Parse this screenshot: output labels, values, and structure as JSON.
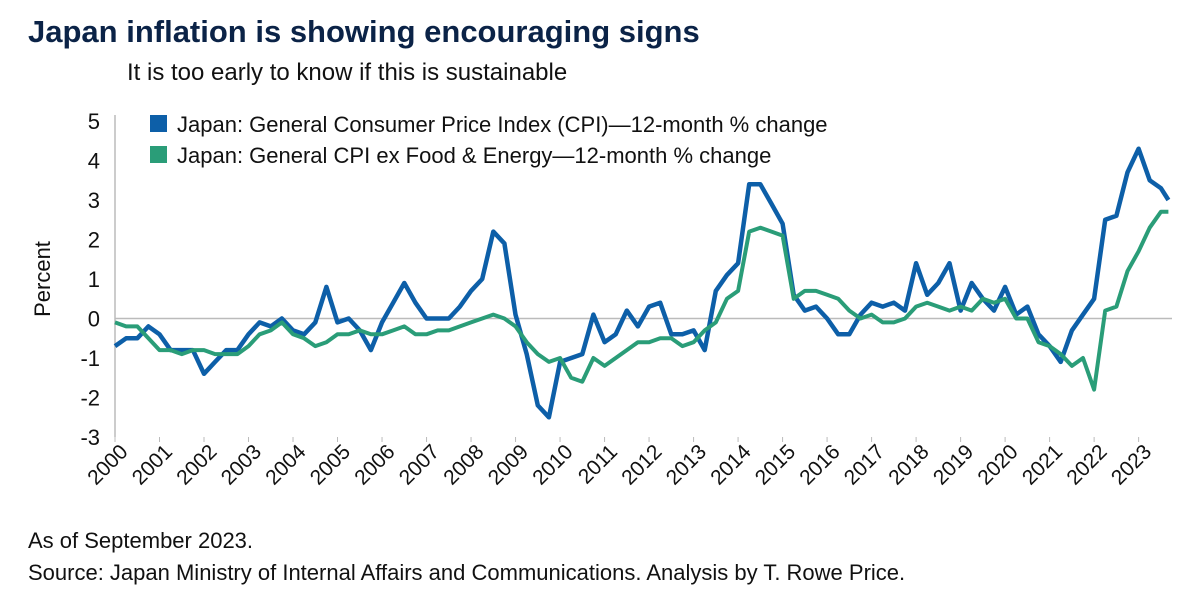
{
  "chart_data": {
    "type": "line",
    "title": "Japan inflation is showing encouraging signs",
    "subtitle": "It is too early to know if this is sustainable",
    "y_label": "Percent",
    "notes": [
      "As of September 2023.",
      "Source: Japan Ministry of Internal Affairs and Communications. Analysis by T. Rowe Price."
    ],
    "x": [
      2000,
      2000.25,
      2000.5,
      2000.75,
      2001,
      2001.25,
      2001.5,
      2001.75,
      2002,
      2002.25,
      2002.5,
      2002.75,
      2003,
      2003.25,
      2003.5,
      2003.75,
      2004,
      2004.25,
      2004.5,
      2004.75,
      2005,
      2005.25,
      2005.5,
      2005.75,
      2006,
      2006.25,
      2006.5,
      2006.75,
      2007,
      2007.25,
      2007.5,
      2007.75,
      2008,
      2008.25,
      2008.5,
      2008.75,
      2009,
      2009.25,
      2009.5,
      2009.75,
      2010,
      2010.25,
      2010.5,
      2010.75,
      2011,
      2011.25,
      2011.5,
      2011.75,
      2012,
      2012.25,
      2012.5,
      2012.75,
      2013,
      2013.25,
      2013.5,
      2013.75,
      2014,
      2014.25,
      2014.5,
      2014.75,
      2015,
      2015.25,
      2015.5,
      2015.75,
      2016,
      2016.25,
      2016.5,
      2016.75,
      2017,
      2017.25,
      2017.5,
      2017.75,
      2018,
      2018.25,
      2018.5,
      2018.75,
      2019,
      2019.25,
      2019.5,
      2019.75,
      2020,
      2020.25,
      2020.5,
      2020.75,
      2021,
      2021.25,
      2021.5,
      2021.75,
      2022,
      2022.25,
      2022.5,
      2022.75,
      2023,
      2023.25,
      2023.5,
      2023.67
    ],
    "series": [
      {
        "name": "Japan: General Consumer Price Index (CPI)—12-month % change",
        "color": "#0d5fa8",
        "values": [
          -0.7,
          -0.5,
          -0.5,
          -0.2,
          -0.4,
          -0.8,
          -0.8,
          -0.8,
          -1.4,
          -1.1,
          -0.8,
          -0.8,
          -0.4,
          -0.1,
          -0.2,
          0.0,
          -0.3,
          -0.4,
          -0.1,
          0.8,
          -0.1,
          0.0,
          -0.3,
          -0.8,
          -0.1,
          0.4,
          0.9,
          0.4,
          0.0,
          0.0,
          0.0,
          0.3,
          0.7,
          1.0,
          2.2,
          1.9,
          0.1,
          -0.9,
          -2.2,
          -2.5,
          -1.1,
          -1.0,
          -0.9,
          0.1,
          -0.6,
          -0.4,
          0.2,
          -0.2,
          0.3,
          0.4,
          -0.4,
          -0.4,
          -0.3,
          -0.8,
          0.7,
          1.1,
          1.4,
          3.4,
          3.4,
          2.9,
          2.4,
          0.6,
          0.2,
          0.3,
          0.0,
          -0.4,
          -0.4,
          0.1,
          0.4,
          0.3,
          0.4,
          0.2,
          1.4,
          0.6,
          0.9,
          1.4,
          0.2,
          0.9,
          0.5,
          0.2,
          0.8,
          0.1,
          0.3,
          -0.4,
          -0.7,
          -1.1,
          -0.3,
          0.1,
          0.5,
          2.5,
          2.6,
          3.7,
          4.3,
          3.5,
          3.3,
          3.0
        ]
      },
      {
        "name": "Japan: General CPI ex Food & Energy—12-month % change",
        "color": "#2a9d78",
        "values": [
          -0.1,
          -0.2,
          -0.2,
          -0.5,
          -0.8,
          -0.8,
          -0.9,
          -0.8,
          -0.8,
          -0.9,
          -0.9,
          -0.9,
          -0.7,
          -0.4,
          -0.3,
          -0.1,
          -0.4,
          -0.5,
          -0.7,
          -0.6,
          -0.4,
          -0.4,
          -0.3,
          -0.4,
          -0.4,
          -0.3,
          -0.2,
          -0.4,
          -0.4,
          -0.3,
          -0.3,
          -0.2,
          -0.1,
          0.0,
          0.1,
          0.0,
          -0.2,
          -0.6,
          -0.9,
          -1.1,
          -1.0,
          -1.5,
          -1.6,
          -1.0,
          -1.2,
          -1.0,
          -0.8,
          -0.6,
          -0.6,
          -0.5,
          -0.5,
          -0.7,
          -0.6,
          -0.3,
          -0.1,
          0.5,
          0.7,
          2.2,
          2.3,
          2.2,
          2.1,
          0.5,
          0.7,
          0.7,
          0.6,
          0.5,
          0.2,
          0.0,
          0.1,
          -0.1,
          -0.1,
          0.0,
          0.3,
          0.4,
          0.3,
          0.2,
          0.3,
          0.2,
          0.5,
          0.4,
          0.5,
          0.0,
          0.0,
          -0.6,
          -0.7,
          -0.9,
          -1.2,
          -1.0,
          -1.8,
          0.2,
          0.3,
          1.2,
          1.7,
          2.3,
          2.7,
          2.7
        ]
      }
    ],
    "xlim": [
      2000,
      2023.75
    ],
    "xticks": [
      2000,
      2001,
      2002,
      2003,
      2004,
      2005,
      2006,
      2007,
      2008,
      2009,
      2010,
      2011,
      2012,
      2013,
      2014,
      2015,
      2016,
      2017,
      2018,
      2019,
      2020,
      2021,
      2022,
      2023
    ],
    "ylim": [
      -3,
      5
    ],
    "yticks": [
      -3,
      -2,
      -1,
      0,
      1,
      2,
      3,
      4,
      5
    ],
    "zero_line": true
  }
}
